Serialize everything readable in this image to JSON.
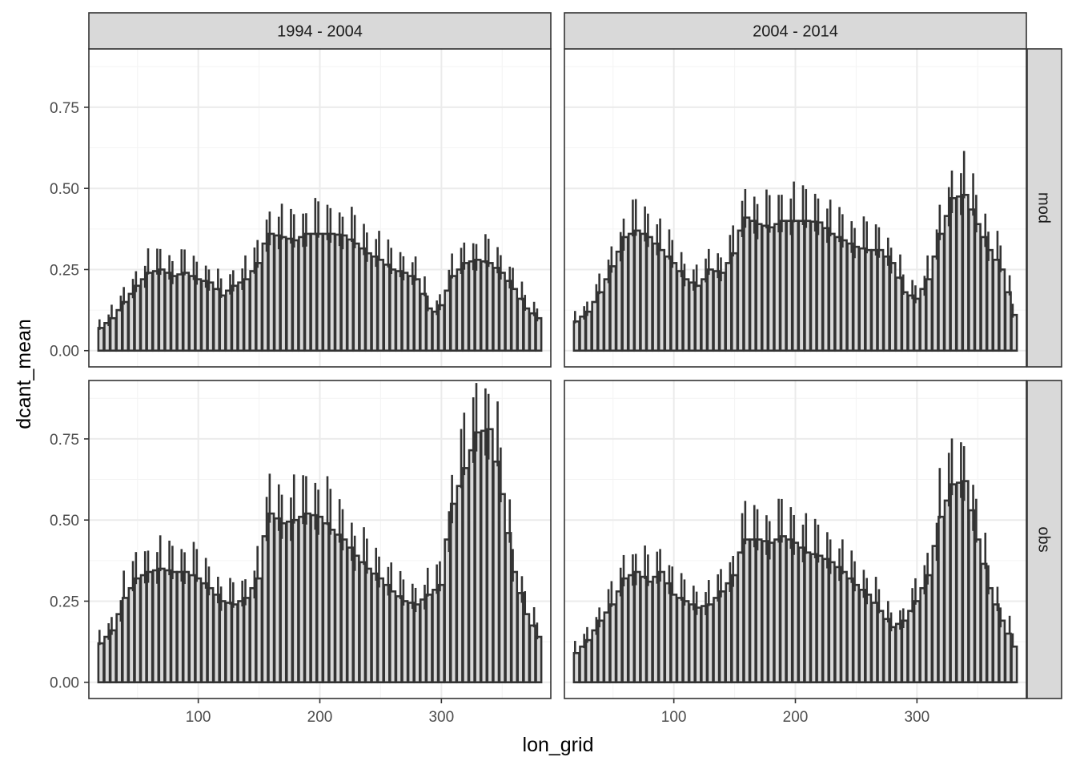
{
  "chart_data": {
    "type": "bar",
    "xlabel": "lon_grid",
    "ylabel": "dcant_mean",
    "xlim": [
      10,
      390
    ],
    "ylim": [
      -0.05,
      0.93
    ],
    "x_ticks": [
      100,
      200,
      300
    ],
    "x_tick_labels": [
      "100",
      "200",
      "300"
    ],
    "y_ticks": [
      0,
      0.25,
      0.5,
      0.75
    ],
    "y_tick_labels": [
      "0.00",
      "0.25",
      "0.50",
      "0.75"
    ],
    "grid": true,
    "legend": "none",
    "colors": {
      "fill": "#d9d9d9",
      "stroke": "#333333",
      "strip": "#d9d9d9",
      "gridline": "#ebebeb"
    },
    "facet_columns": [
      "1994 - 2004",
      "2004 - 2014"
    ],
    "facet_rows": [
      "mod",
      "obs"
    ],
    "panels": [
      {
        "column": "1994 - 2004",
        "row": "mod",
        "profile": [
          [
            20,
            0.07
          ],
          [
            30,
            0.1
          ],
          [
            40,
            0.15
          ],
          [
            50,
            0.2
          ],
          [
            60,
            0.24
          ],
          [
            70,
            0.25
          ],
          [
            80,
            0.23
          ],
          [
            90,
            0.24
          ],
          [
            100,
            0.22
          ],
          [
            110,
            0.21
          ],
          [
            120,
            0.17
          ],
          [
            130,
            0.2
          ],
          [
            140,
            0.22
          ],
          [
            150,
            0.27
          ],
          [
            155,
            0.33
          ],
          [
            160,
            0.36
          ],
          [
            170,
            0.35
          ],
          [
            180,
            0.34
          ],
          [
            190,
            0.36
          ],
          [
            200,
            0.36
          ],
          [
            210,
            0.36
          ],
          [
            220,
            0.355
          ],
          [
            230,
            0.33
          ],
          [
            240,
            0.3
          ],
          [
            250,
            0.28
          ],
          [
            260,
            0.25
          ],
          [
            270,
            0.24
          ],
          [
            280,
            0.22
          ],
          [
            290,
            0.13
          ],
          [
            295,
            0.12
          ],
          [
            300,
            0.14
          ],
          [
            310,
            0.23
          ],
          [
            320,
            0.27
          ],
          [
            330,
            0.28
          ],
          [
            340,
            0.27
          ],
          [
            350,
            0.24
          ],
          [
            360,
            0.19
          ],
          [
            370,
            0.13
          ],
          [
            380,
            0.1
          ]
        ]
      },
      {
        "column": "2004 - 2014",
        "row": "mod",
        "profile": [
          [
            20,
            0.09
          ],
          [
            30,
            0.12
          ],
          [
            40,
            0.18
          ],
          [
            50,
            0.26
          ],
          [
            60,
            0.35
          ],
          [
            70,
            0.37
          ],
          [
            80,
            0.35
          ],
          [
            90,
            0.31
          ],
          [
            100,
            0.27
          ],
          [
            110,
            0.22
          ],
          [
            120,
            0.2
          ],
          [
            125,
            0.22
          ],
          [
            130,
            0.25
          ],
          [
            140,
            0.24
          ],
          [
            150,
            0.3
          ],
          [
            155,
            0.37
          ],
          [
            160,
            0.41
          ],
          [
            170,
            0.39
          ],
          [
            180,
            0.38
          ],
          [
            190,
            0.4
          ],
          [
            200,
            0.4
          ],
          [
            210,
            0.4
          ],
          [
            220,
            0.395
          ],
          [
            230,
            0.36
          ],
          [
            240,
            0.34
          ],
          [
            250,
            0.32
          ],
          [
            260,
            0.31
          ],
          [
            270,
            0.31
          ],
          [
            280,
            0.27
          ],
          [
            290,
            0.18
          ],
          [
            300,
            0.16
          ],
          [
            310,
            0.22
          ],
          [
            320,
            0.36
          ],
          [
            330,
            0.47
          ],
          [
            340,
            0.48
          ],
          [
            350,
            0.39
          ],
          [
            360,
            0.31
          ],
          [
            370,
            0.25
          ],
          [
            380,
            0.11
          ]
        ]
      },
      {
        "column": "1994 - 2004",
        "row": "obs",
        "profile": [
          [
            20,
            0.12
          ],
          [
            30,
            0.16
          ],
          [
            40,
            0.26
          ],
          [
            50,
            0.32
          ],
          [
            60,
            0.34
          ],
          [
            70,
            0.35
          ],
          [
            80,
            0.34
          ],
          [
            90,
            0.34
          ],
          [
            100,
            0.32
          ],
          [
            110,
            0.29
          ],
          [
            120,
            0.25
          ],
          [
            130,
            0.24
          ],
          [
            140,
            0.26
          ],
          [
            150,
            0.32
          ],
          [
            155,
            0.45
          ],
          [
            160,
            0.52
          ],
          [
            170,
            0.49
          ],
          [
            180,
            0.5
          ],
          [
            190,
            0.52
          ],
          [
            200,
            0.51
          ],
          [
            210,
            0.47
          ],
          [
            220,
            0.44
          ],
          [
            230,
            0.39
          ],
          [
            240,
            0.35
          ],
          [
            250,
            0.32
          ],
          [
            260,
            0.28
          ],
          [
            270,
            0.25
          ],
          [
            280,
            0.24
          ],
          [
            290,
            0.27
          ],
          [
            300,
            0.3
          ],
          [
            305,
            0.44
          ],
          [
            310,
            0.55
          ],
          [
            320,
            0.66
          ],
          [
            330,
            0.77
          ],
          [
            340,
            0.78
          ],
          [
            350,
            0.58
          ],
          [
            360,
            0.34
          ],
          [
            370,
            0.21
          ],
          [
            380,
            0.14
          ]
        ]
      },
      {
        "column": "2004 - 2014",
        "row": "obs",
        "profile": [
          [
            20,
            0.09
          ],
          [
            30,
            0.13
          ],
          [
            40,
            0.19
          ],
          [
            50,
            0.24
          ],
          [
            60,
            0.32
          ],
          [
            70,
            0.34
          ],
          [
            80,
            0.31
          ],
          [
            90,
            0.34
          ],
          [
            100,
            0.27
          ],
          [
            110,
            0.25
          ],
          [
            120,
            0.23
          ],
          [
            130,
            0.24
          ],
          [
            140,
            0.28
          ],
          [
            150,
            0.33
          ],
          [
            155,
            0.4
          ],
          [
            160,
            0.44
          ],
          [
            170,
            0.44
          ],
          [
            180,
            0.43
          ],
          [
            190,
            0.45
          ],
          [
            200,
            0.43
          ],
          [
            210,
            0.4
          ],
          [
            220,
            0.39
          ],
          [
            230,
            0.37
          ],
          [
            240,
            0.34
          ],
          [
            250,
            0.3
          ],
          [
            260,
            0.27
          ],
          [
            270,
            0.22
          ],
          [
            280,
            0.17
          ],
          [
            290,
            0.19
          ],
          [
            300,
            0.25
          ],
          [
            310,
            0.33
          ],
          [
            320,
            0.51
          ],
          [
            330,
            0.61
          ],
          [
            340,
            0.62
          ],
          [
            350,
            0.44
          ],
          [
            360,
            0.29
          ],
          [
            370,
            0.19
          ],
          [
            380,
            0.11
          ]
        ]
      }
    ]
  }
}
